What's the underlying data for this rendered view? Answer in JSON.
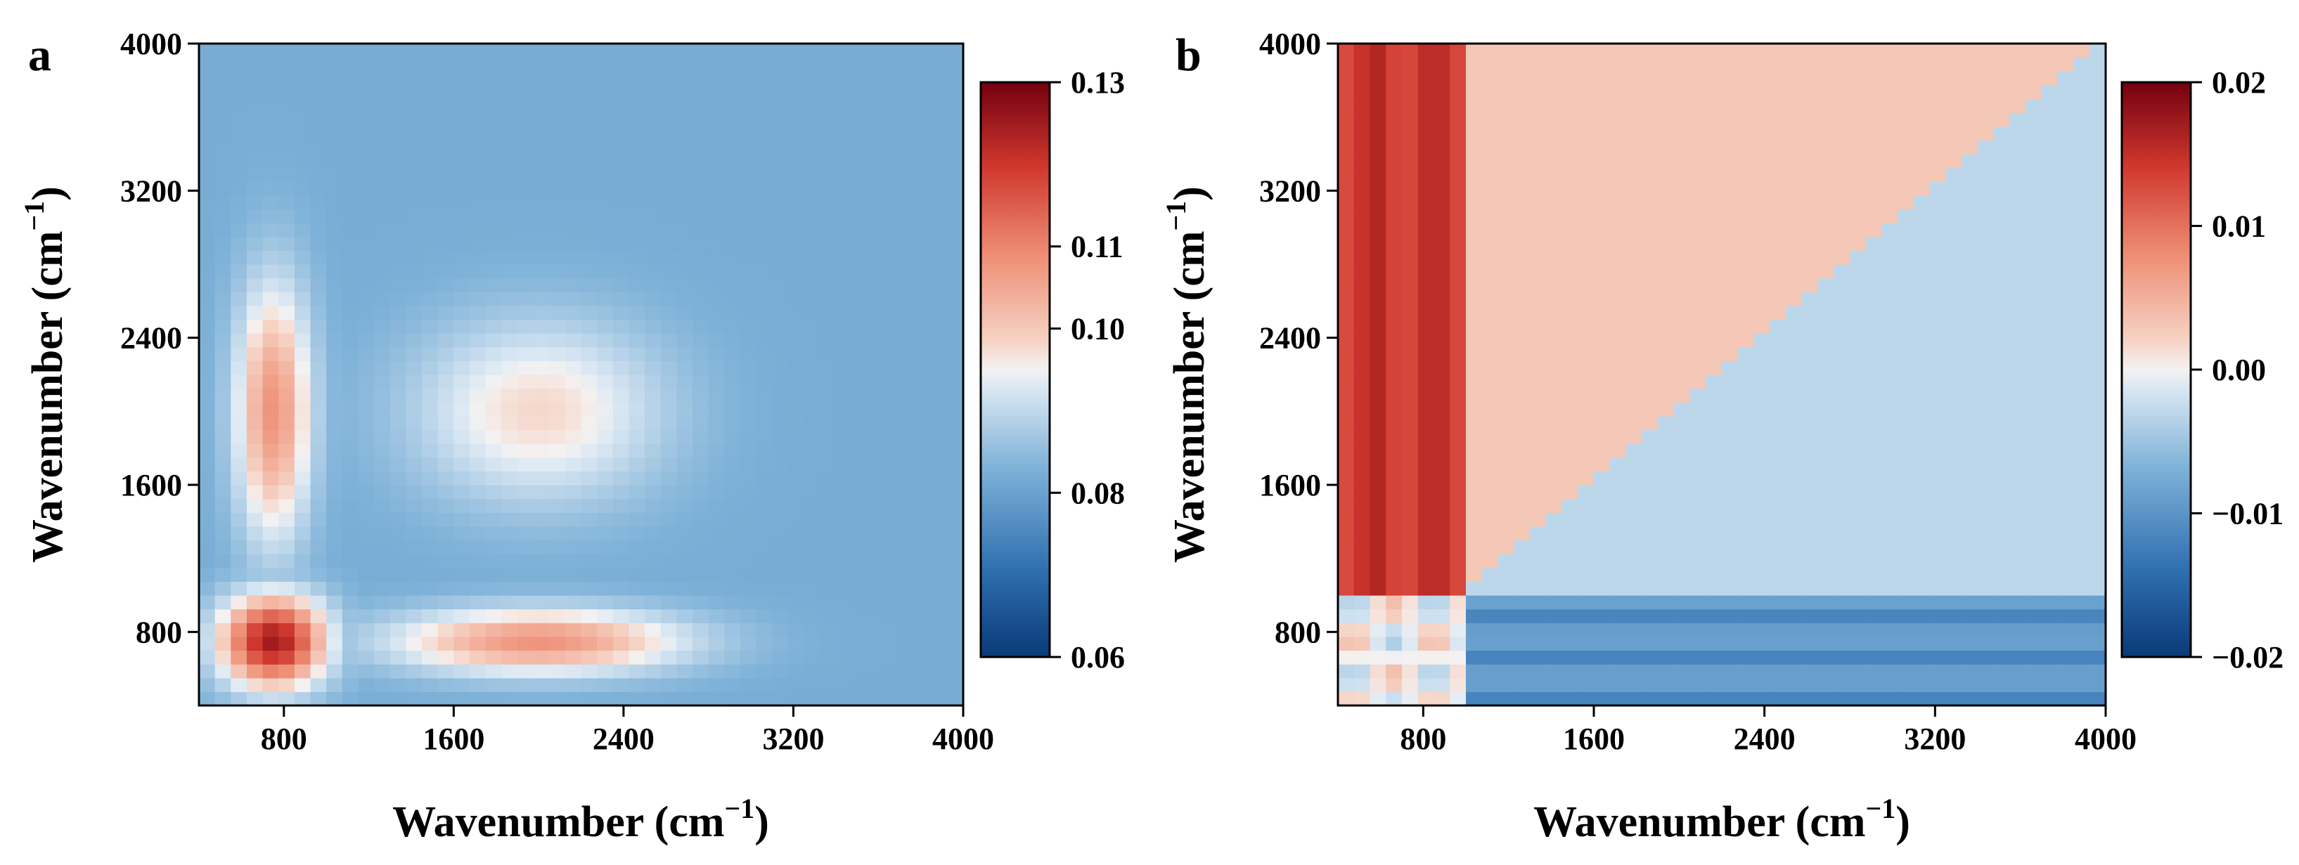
{
  "chart_data": [
    {
      "type": "heatmap",
      "panel": "a",
      "xlabel": "Wavenumber (cm",
      "ylabel": "Wavenumber (cm",
      "label_superscript": "−1",
      "label_close": ")",
      "xlim": [
        400,
        4000
      ],
      "ylim": [
        400,
        4000
      ],
      "x_ticks": [
        "800",
        "1600",
        "2400",
        "3200",
        "4000"
      ],
      "y_ticks": [
        "800",
        "1600",
        "2400",
        "3200",
        "4000"
      ],
      "colorbar": {
        "min": 0.06,
        "max": 0.13,
        "ticks": [
          "0.06",
          "0.08",
          "0.10",
          "0.11",
          "0.13"
        ],
        "tick_values": [
          0.06,
          0.08,
          0.1,
          0.11,
          0.13
        ]
      },
      "features": [
        {
          "type": "peak",
          "x": 750,
          "y": 750,
          "value": 0.125,
          "sx": 250,
          "sy": 250
        },
        {
          "type": "peak",
          "x": 750,
          "y": 2000,
          "value": 0.108,
          "sx": 180,
          "sy": 700
        },
        {
          "type": "peak",
          "x": 2000,
          "y": 750,
          "value": 0.108,
          "sx": 700,
          "sy": 180
        },
        {
          "type": "plateau",
          "x": 2000,
          "y": 2000,
          "value": 0.098,
          "sx": 600,
          "sy": 500
        }
      ],
      "background_value": 0.082
    },
    {
      "type": "heatmap",
      "panel": "b",
      "xlabel": "Wavenumber (cm",
      "ylabel": "Wavenumber (cm",
      "label_superscript": "−1",
      "label_close": ")",
      "xlim": [
        400,
        4000
      ],
      "ylim": [
        400,
        4000
      ],
      "x_ticks": [
        "800",
        "1600",
        "2400",
        "3200",
        "4000"
      ],
      "y_ticks": [
        "800",
        "1600",
        "2400",
        "3200",
        "4000"
      ],
      "colorbar": {
        "min": -0.02,
        "max": 0.02,
        "ticks": [
          "−0.02",
          "−0.01",
          "0.00",
          "0.01",
          "0.02"
        ],
        "tick_values": [
          -0.02,
          -0.01,
          0.0,
          0.01,
          0.02
        ]
      },
      "features": [
        {
          "type": "band",
          "axis": "x",
          "from": 400,
          "to": 1000,
          "value": 0.017
        },
        {
          "type": "band",
          "axis": "y",
          "from": 400,
          "to": 1000,
          "value": -0.012
        },
        {
          "type": "region",
          "name": "upper-left triangle",
          "value": 0.003
        },
        {
          "type": "region",
          "name": "lower-right triangle",
          "value": -0.003
        }
      ]
    }
  ]
}
